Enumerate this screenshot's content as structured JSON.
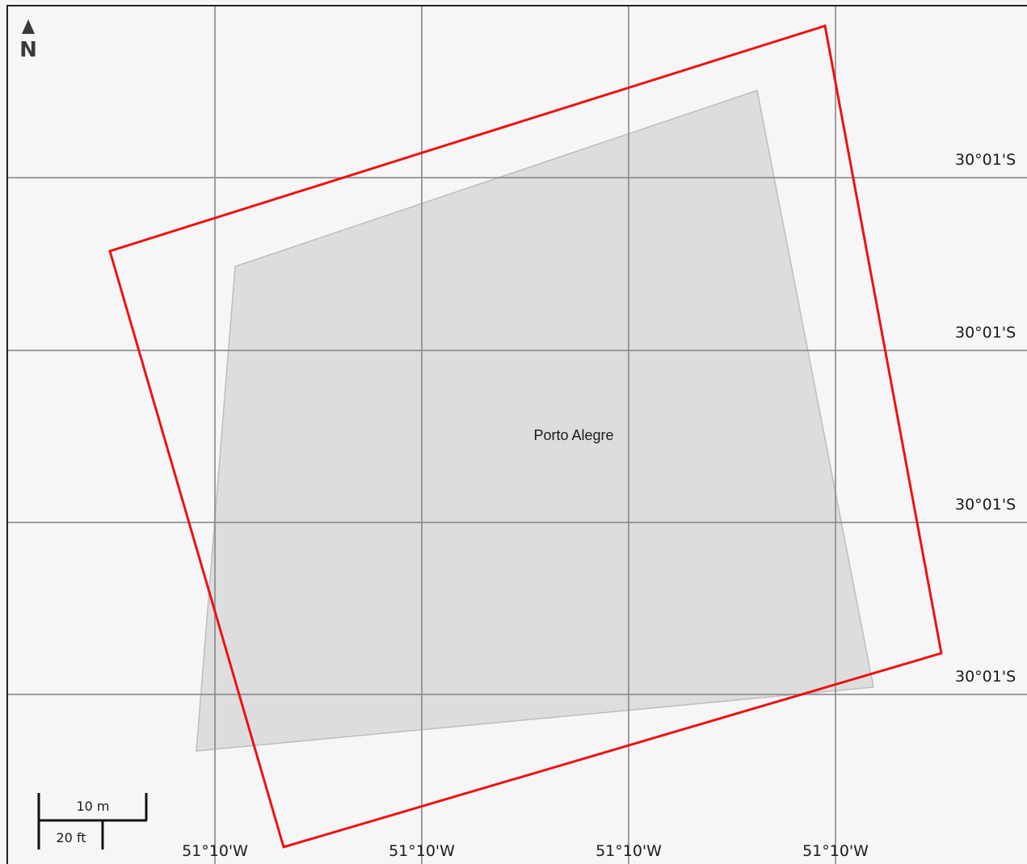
{
  "map": {
    "background": "#f6f6f6",
    "grid_color": "#8c8c8c",
    "footprint_color": "#ee1111",
    "parcel_fill": "#c9c9c9",
    "parcel_stroke": "#bdbdbd"
  },
  "north_arrow": {
    "label": "N",
    "icon": "north-arrow-icon"
  },
  "grid": {
    "longitude_labels": [
      "51°10'W",
      "51°10'W",
      "51°10'W",
      "51°10'W"
    ],
    "latitude_labels": [
      "30°01'S",
      "30°01'S",
      "30°01'S",
      "30°01'S"
    ]
  },
  "features": {
    "parcel_label": "Porto Alegre"
  },
  "scale_bar": {
    "metric_label": "10 m",
    "imperial_label": "20 ft"
  }
}
